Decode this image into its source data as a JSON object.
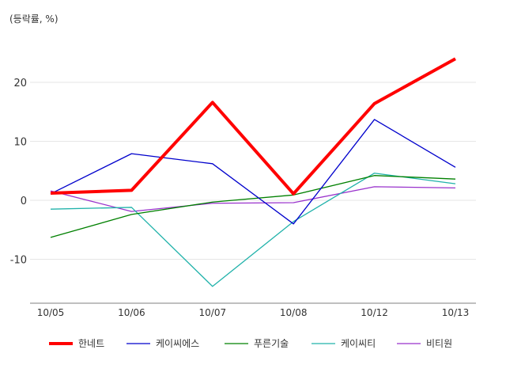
{
  "chart_data": {
    "type": "line",
    "title": "",
    "ylabel": "(등락률, %)",
    "xlabel": "",
    "categories": [
      "10/05",
      "10/06",
      "10/07",
      "10/08",
      "10/12",
      "10/13"
    ],
    "ylim": [
      -17.5,
      28
    ],
    "yticks": [
      20,
      10,
      0,
      -10
    ],
    "ytick_labels": [
      "20",
      "10",
      "0",
      "-10"
    ],
    "grid": true,
    "legend_position": "bottom",
    "series": [
      {
        "name": "한네트",
        "color": "#ff0000",
        "values": [
          1.2,
          1.7,
          16.6,
          1.1,
          16.4,
          24.0
        ]
      },
      {
        "name": "케이씨에스",
        "color": "#0000cc",
        "values": [
          1.1,
          7.9,
          6.2,
          -4.0,
          13.7,
          5.6
        ]
      },
      {
        "name": "푸른기술",
        "color": "#008000",
        "values": [
          -6.3,
          -2.4,
          -0.3,
          0.9,
          4.2,
          3.6
        ]
      },
      {
        "name": "케이씨티",
        "color": "#20b2aa",
        "values": [
          -1.5,
          -1.2,
          -14.6,
          -3.6,
          4.6,
          2.8
        ]
      },
      {
        "name": "비티원",
        "color": "#9932cc",
        "values": [
          1.6,
          -1.9,
          -0.5,
          -0.4,
          2.3,
          2.1
        ]
      }
    ]
  }
}
